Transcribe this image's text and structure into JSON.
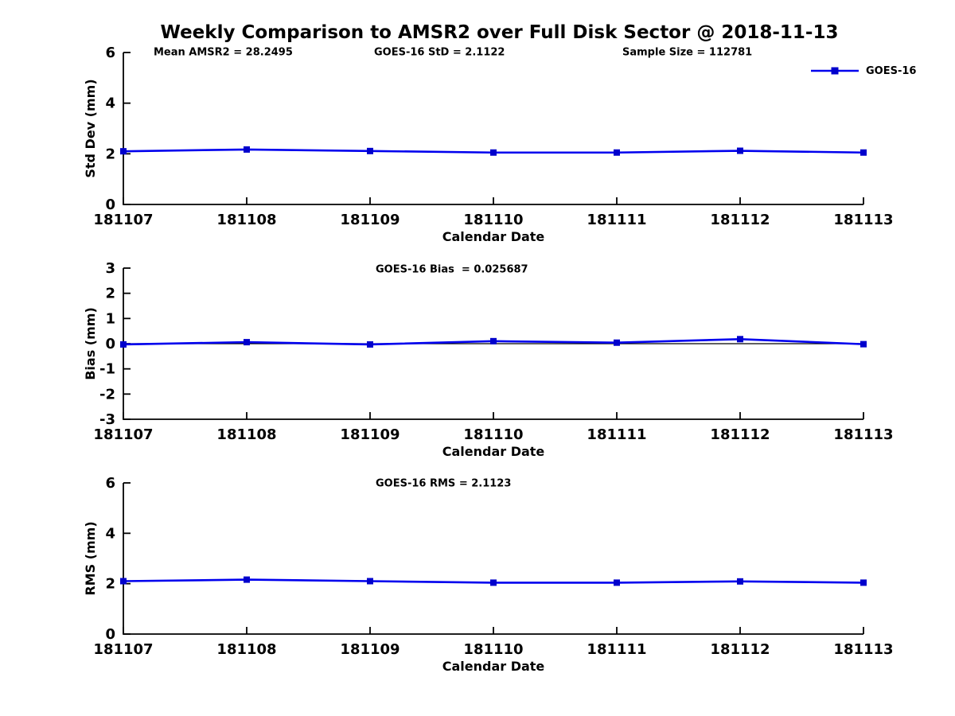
{
  "title": "Weekly Comparison to AMSR2 over Full Disk Sector @ 2018-11-13",
  "legend": {
    "label": "GOES-16"
  },
  "colors": {
    "line": "#0000ee",
    "marker": "#0000cc",
    "axis": "#000000",
    "zero_line": "#000000"
  },
  "chart_data": [
    {
      "type": "line",
      "id": "std-dev-panel",
      "title": "",
      "annotations": [
        "Mean AMSR2 = 28.2495",
        "GOES-16 StD = 2.1122",
        "Sample Size = 112781"
      ],
      "xlabel": "Calendar Date",
      "ylabel": "Std Dev (mm)",
      "ylim": [
        0,
        6
      ],
      "yticks": [
        0,
        2,
        4,
        6
      ],
      "grid": false,
      "legend_position": "top-right-outside",
      "categories": [
        "181107",
        "181108",
        "181109",
        "181110",
        "181111",
        "181112",
        "181113"
      ],
      "series": [
        {
          "name": "GOES-16",
          "values": [
            2.1,
            2.17,
            2.11,
            2.05,
            2.05,
            2.12,
            2.05
          ]
        }
      ]
    },
    {
      "type": "line",
      "id": "bias-panel",
      "title": "",
      "annotations": [
        "GOES-16 Bias  = 0.025687"
      ],
      "xlabel": "Calendar Date",
      "ylabel": "Bias (mm)",
      "ylim": [
        -3,
        3
      ],
      "yticks": [
        -3,
        -2,
        -1,
        0,
        1,
        2,
        3
      ],
      "zero_line": true,
      "grid": false,
      "categories": [
        "181107",
        "181108",
        "181109",
        "181110",
        "181111",
        "181112",
        "181113"
      ],
      "series": [
        {
          "name": "GOES-16",
          "values": [
            -0.03,
            0.06,
            -0.03,
            0.1,
            0.04,
            0.18,
            -0.02
          ]
        }
      ]
    },
    {
      "type": "line",
      "id": "rms-panel",
      "title": "",
      "annotations": [
        "GOES-16 RMS = 2.1123"
      ],
      "xlabel": "Calendar Date",
      "ylabel": "RMS (mm)",
      "ylim": [
        0,
        6
      ],
      "yticks": [
        0,
        2,
        4,
        6
      ],
      "grid": false,
      "categories": [
        "181107",
        "181108",
        "181109",
        "181110",
        "181111",
        "181112",
        "181113"
      ],
      "series": [
        {
          "name": "GOES-16",
          "values": [
            2.1,
            2.16,
            2.1,
            2.04,
            2.04,
            2.09,
            2.04
          ]
        }
      ]
    }
  ]
}
